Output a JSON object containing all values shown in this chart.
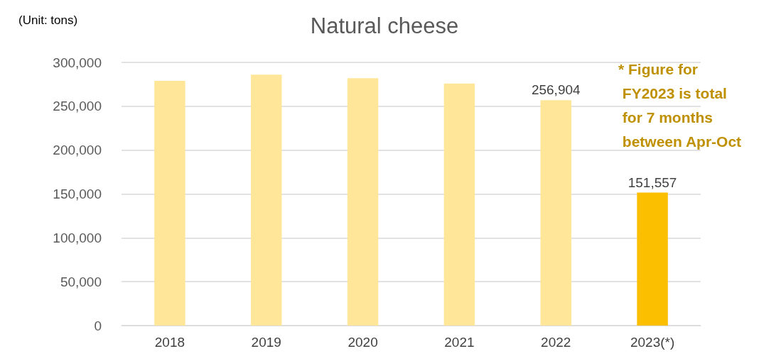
{
  "chart_data": {
    "type": "bar",
    "title": "Natural cheese",
    "categories": [
      "2018",
      "2019",
      "2020",
      "2021",
      "2022",
      "2023(*)"
    ],
    "values": [
      279000,
      286000,
      282000,
      276000,
      256904,
      151557
    ],
    "colors": [
      "#ffe699",
      "#ffe699",
      "#ffe699",
      "#ffe699",
      "#ffe699",
      "#fbbf00"
    ],
    "value_labels": [
      null,
      null,
      null,
      null,
      "256,904",
      "151,557"
    ],
    "ylim": [
      0,
      300000
    ],
    "yticks": [
      0,
      {
        "value": 50000,
        "label": "50,000"
      },
      {
        "value": 100000,
        "label": "100,000"
      },
      {
        "value": 150000,
        "label": "150,000"
      },
      {
        "value": 200000,
        "label": "200,000"
      },
      {
        "value": 250000,
        "label": "250,000"
      },
      {
        "value": 300000,
        "label": "300,000"
      }
    ],
    "grid": "y",
    "annotations": [
      "(Unit: tons)",
      "* Figure for\n FY2023 is total\n for 7 months\n between Apr-Oct"
    ]
  }
}
